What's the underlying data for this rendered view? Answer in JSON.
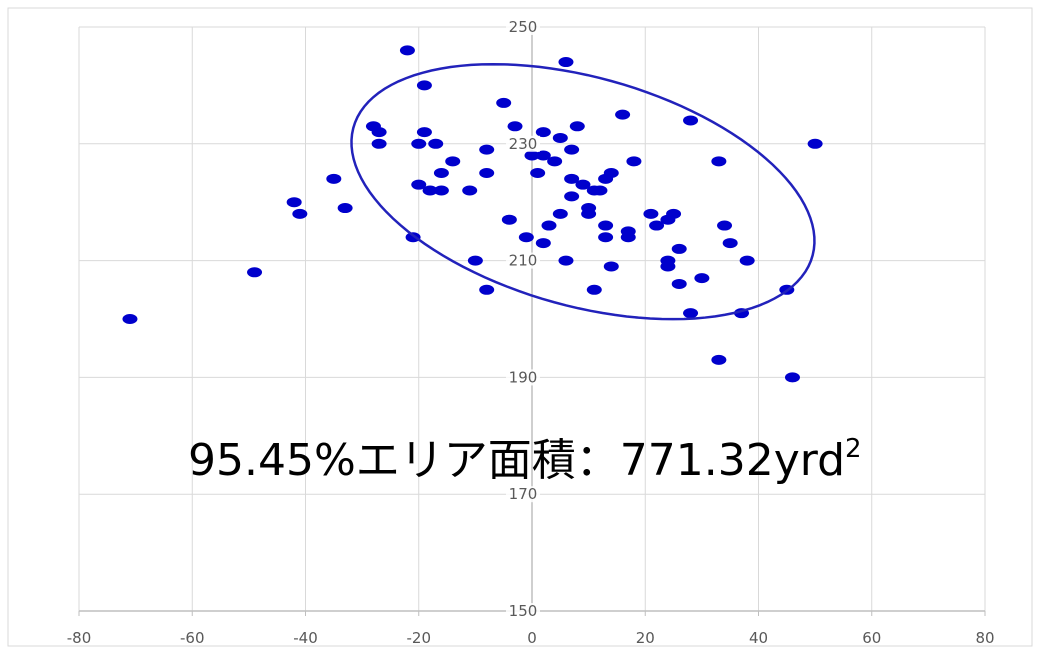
{
  "colors": {
    "points": "#0000cc",
    "ellipse": "#2222bb",
    "grid": "#d9d9d9",
    "axis": "#bfbfbf",
    "tick_text": "#595959",
    "frame": "#d9d9d9"
  },
  "chart_data": {
    "type": "scatter",
    "title": "",
    "xlabel": "",
    "ylabel": "",
    "xlim": [
      -80,
      80
    ],
    "ylim": [
      150,
      250
    ],
    "x_ticks": [
      -80,
      -60,
      -40,
      -20,
      0,
      20,
      40,
      60,
      80
    ],
    "y_ticks": [
      150,
      170,
      190,
      210,
      230,
      250
    ],
    "x_tick_labels": [
      "-80",
      "-60",
      "-40",
      "-20",
      "0",
      "20",
      "40",
      "60",
      "80"
    ],
    "y_tick_labels": [
      "150",
      "170",
      "190",
      "210",
      "230",
      "250"
    ],
    "grid": true,
    "annotation": {
      "text": "95.45%エリア面積：771.32yrd",
      "superscript": "2"
    },
    "ellipse": {
      "label": "95.45% area",
      "center": [
        9,
        221.8
      ],
      "semi_major": 42,
      "semi_minor": 19.6,
      "rotation_deg": -15
    },
    "points": [
      [
        -22,
        246
      ],
      [
        6,
        244
      ],
      [
        -19,
        240
      ],
      [
        -5,
        237
      ],
      [
        16,
        235
      ],
      [
        28,
        234
      ],
      [
        -28,
        233
      ],
      [
        -27,
        232
      ],
      [
        -19,
        232
      ],
      [
        -3,
        233
      ],
      [
        2,
        232
      ],
      [
        5,
        231
      ],
      [
        8,
        233
      ],
      [
        -20,
        230
      ],
      [
        -17,
        230
      ],
      [
        -27,
        230
      ],
      [
        -8,
        229
      ],
      [
        -14,
        227
      ],
      [
        0,
        228
      ],
      [
        2,
        228
      ],
      [
        4,
        227
      ],
      [
        7,
        229
      ],
      [
        18,
        227
      ],
      [
        33,
        227
      ],
      [
        50,
        230
      ],
      [
        -35,
        224
      ],
      [
        -20,
        223
      ],
      [
        -16,
        225
      ],
      [
        -8,
        225
      ],
      [
        -11,
        222
      ],
      [
        -18,
        222
      ],
      [
        -16,
        222
      ],
      [
        1,
        225
      ],
      [
        7,
        224
      ],
      [
        9,
        223
      ],
      [
        11,
        222
      ],
      [
        13,
        224
      ],
      [
        14,
        225
      ],
      [
        -42,
        220
      ],
      [
        -41,
        218
      ],
      [
        -33,
        219
      ],
      [
        -4,
        217
      ],
      [
        7,
        221
      ],
      [
        10,
        219
      ],
      [
        12,
        222
      ],
      [
        5,
        218
      ],
      [
        10,
        218
      ],
      [
        3,
        216
      ],
      [
        -21,
        214
      ],
      [
        -1,
        214
      ],
      [
        2,
        213
      ],
      [
        13,
        216
      ],
      [
        17,
        215
      ],
      [
        21,
        218
      ],
      [
        22,
        216
      ],
      [
        24,
        217
      ],
      [
        25,
        218
      ],
      [
        34,
        216
      ],
      [
        13,
        214
      ],
      [
        17,
        214
      ],
      [
        26,
        212
      ],
      [
        35,
        213
      ],
      [
        -49,
        208
      ],
      [
        -10,
        210
      ],
      [
        6,
        210
      ],
      [
        14,
        209
      ],
      [
        24,
        209
      ],
      [
        24,
        210
      ],
      [
        30,
        207
      ],
      [
        38,
        210
      ],
      [
        -71,
        200
      ],
      [
        -8,
        205
      ],
      [
        11,
        205
      ],
      [
        26,
        206
      ],
      [
        28,
        201
      ],
      [
        37,
        201
      ],
      [
        45,
        205
      ],
      [
        33,
        193
      ],
      [
        46,
        190
      ]
    ]
  }
}
